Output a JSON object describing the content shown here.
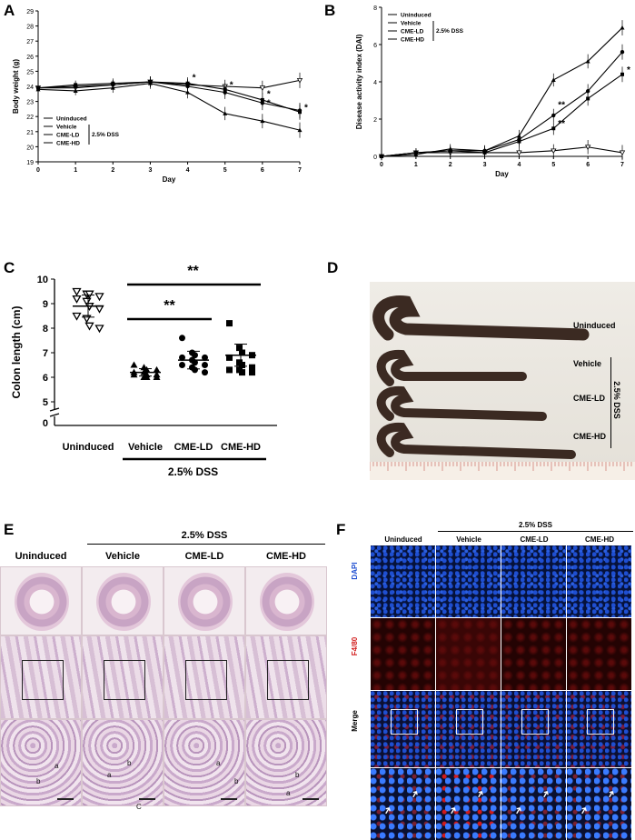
{
  "panels": {
    "A": {
      "label": "A"
    },
    "B": {
      "label": "B"
    },
    "C": {
      "label": "C"
    },
    "D": {
      "label": "D"
    },
    "E": {
      "label": "E"
    },
    "F": {
      "label": "F"
    }
  },
  "groups": [
    "Uninduced",
    "Vehicle",
    "CME-LD",
    "CME-HD"
  ],
  "dss_label": "2.5% DSS",
  "chart_data": [
    {
      "panel": "A",
      "type": "line",
      "xlabel": "Day",
      "ylabel": "Body weight (g)",
      "x": [
        0,
        1,
        2,
        3,
        4,
        5,
        6,
        7
      ],
      "xlim": [
        0,
        7
      ],
      "ylim": [
        19,
        29
      ],
      "yticks": [
        19,
        20,
        21,
        22,
        23,
        24,
        25,
        26,
        27,
        28,
        29
      ],
      "series": [
        {
          "name": "Uninduced",
          "values": [
            23.9,
            23.9,
            24.1,
            24.3,
            24.1,
            24.0,
            23.9,
            24.4
          ]
        },
        {
          "name": "Vehicle",
          "values": [
            23.8,
            23.7,
            23.9,
            24.2,
            23.6,
            22.2,
            21.7,
            21.1
          ]
        },
        {
          "name": "CME-LD",
          "values": [
            23.9,
            24.0,
            24.1,
            24.3,
            24.0,
            23.6,
            22.9,
            22.4
          ]
        },
        {
          "name": "CME-HD",
          "values": [
            23.9,
            24.1,
            24.2,
            24.3,
            24.2,
            23.8,
            23.1,
            22.3
          ]
        }
      ],
      "annotations": [
        "*",
        "*",
        "*",
        "*",
        "*"
      ],
      "legend_bracket": "2.5% DSS"
    },
    {
      "panel": "B",
      "type": "line",
      "xlabel": "Day",
      "ylabel": "Disease activity index (DAI)",
      "x": [
        0,
        1,
        2,
        3,
        4,
        5,
        6,
        7
      ],
      "xlim": [
        0,
        7
      ],
      "ylim": [
        0,
        8
      ],
      "yticks": [
        0,
        2,
        4,
        6,
        8
      ],
      "series": [
        {
          "name": "Uninduced",
          "values": [
            0,
            0.2,
            0.2,
            0.2,
            0.2,
            0.3,
            0.5,
            0.2
          ]
        },
        {
          "name": "Vehicle",
          "values": [
            0,
            0.1,
            0.4,
            0.3,
            1.1,
            4.1,
            5.1,
            6.9
          ]
        },
        {
          "name": "CME-LD",
          "values": [
            0,
            0.2,
            0.3,
            0.3,
            0.9,
            2.2,
            3.5,
            5.6
          ]
        },
        {
          "name": "CME-HD",
          "values": [
            0,
            0.2,
            0.3,
            0.2,
            0.8,
            1.5,
            3.1,
            4.4
          ]
        }
      ],
      "annotations": [
        "**",
        "**",
        "*"
      ],
      "legend_bracket": "2.5% DSS"
    },
    {
      "panel": "C",
      "type": "scatter",
      "ylabel": "Colon length (cm)",
      "categories": [
        "Uninduced",
        "Vehicle",
        "CME-LD",
        "CME-HD"
      ],
      "yticks": [
        0,
        5,
        6,
        7,
        8,
        9,
        10
      ],
      "ylim": [
        5,
        10
      ],
      "axis_break": true,
      "points": [
        [
          9.5,
          9.4,
          9.4,
          9.3,
          9.2,
          9.1,
          8.9,
          8.8,
          8.5,
          8.4,
          8.1,
          8.0
        ],
        [
          6.5,
          6.4,
          6.3,
          6.3,
          6.2,
          6.2,
          6.1,
          6.1,
          6.1,
          6.0,
          6.0,
          6.0
        ],
        [
          7.6,
          7.0,
          6.9,
          6.8,
          6.8,
          6.7,
          6.6,
          6.5,
          6.5,
          6.4,
          6.3,
          6.2
        ],
        [
          8.2,
          7.2,
          7.0,
          6.9,
          6.8,
          6.6,
          6.5,
          6.4,
          6.3,
          6.3,
          6.2,
          6.2
        ]
      ],
      "means": [
        8.9,
        6.2,
        6.7,
        6.9
      ],
      "sems": [
        0.15,
        0.05,
        0.12,
        0.15
      ],
      "significance": [
        {
          "from": "Vehicle",
          "to": "CME-LD",
          "label": "**"
        },
        {
          "from": "Vehicle",
          "to": "CME-HD",
          "label": "**"
        }
      ],
      "bracket_label": "2.5% DSS"
    }
  ],
  "panelD": {
    "labels": [
      "Uninduced",
      "Vehicle",
      "CME-LD",
      "CME-HD"
    ],
    "dss": "2.5% DSS"
  },
  "panelE": {
    "dss": "2.5% DSS",
    "cols": [
      "Uninduced",
      "Vehicle",
      "CME-LD",
      "CME-HD"
    ],
    "annot_a": "a",
    "annot_b": "b",
    "annot_c": "C"
  },
  "panelF": {
    "dss": "2.5% DSS",
    "cols": [
      "Uninduced",
      "Vehicle",
      "CME-LD",
      "CME-HD"
    ],
    "rows": [
      "DAPI",
      "F4/80",
      "Merge"
    ],
    "colors": {
      "dapi": "#1f4fd1",
      "f480": "#d11a1a"
    }
  }
}
